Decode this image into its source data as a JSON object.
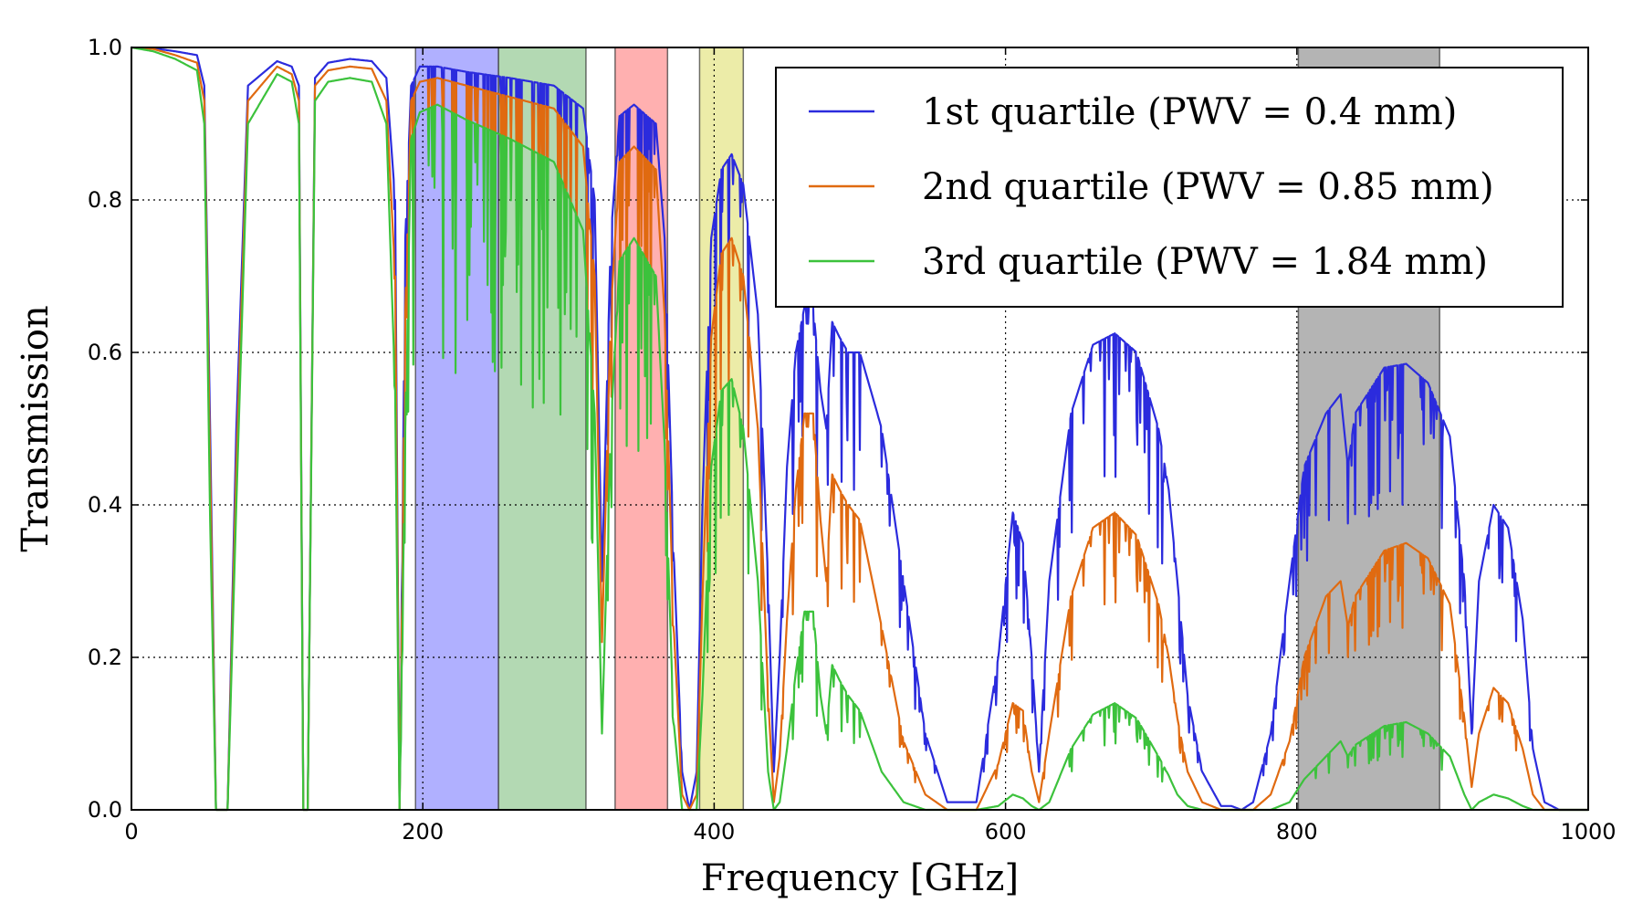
{
  "chart_data": {
    "type": "line",
    "title": "",
    "xlabel": "Frequency [GHz]",
    "ylabel": "Transmission",
    "xlim": [
      0,
      1000
    ],
    "ylim": [
      0,
      1.0
    ],
    "xticks": [
      "0",
      "200",
      "400",
      "600",
      "800",
      "1000"
    ],
    "yticks": [
      "0.0",
      "0.2",
      "0.4",
      "0.6",
      "0.8",
      "1.0"
    ],
    "grid": true,
    "legend_position": "top-right",
    "bands": [
      {
        "x0": 195,
        "x1": 252,
        "color": "#b0b0ff"
      },
      {
        "x0": 252,
        "x1": 312,
        "color": "#b3d9b3"
      },
      {
        "x0": 332,
        "x1": 368,
        "color": "#ffb0b0"
      },
      {
        "x0": 390,
        "x1": 420,
        "color": "#ececa8"
      },
      {
        "x0": 801,
        "x1": 898,
        "color": "#b4b4b4"
      }
    ],
    "absorption_lines_ghz": [
      22.2,
      56,
      62,
      119,
      183.3,
      321,
      325,
      380,
      390,
      439,
      448,
      475,
      487,
      557,
      621,
      752,
      771,
      835,
      916,
      970
    ],
    "series": [
      {
        "name": "1st quartile (PWV = 0.4 mm)",
        "color": "#2b2bdd",
        "x": [
          0,
          15,
          30,
          45,
          50,
          54,
          58,
          66,
          72,
          80,
          100,
          110,
          115,
          118,
          121,
          126,
          135,
          150,
          165,
          175,
          181,
          184,
          188,
          192,
          198,
          210,
          230,
          260,
          290,
          310,
          318,
          323,
          329,
          335,
          345,
          360,
          366,
          372,
          378,
          383,
          388,
          392,
          398,
          405,
          412,
          420,
          430,
          437,
          441,
          445,
          450,
          456,
          462,
          468,
          473,
          477,
          481,
          486,
          492,
          500,
          515,
          530,
          545,
          560,
          580,
          595,
          605,
          612,
          618,
          623,
          630,
          645,
          660,
          675,
          690,
          705,
          712,
          718,
          725,
          735,
          748,
          755,
          762,
          770,
          782,
          795,
          805,
          820,
          830,
          835,
          840,
          860,
          875,
          890,
          905,
          915,
          920,
          925,
          935,
          945,
          955,
          962,
          970,
          980,
          1000
        ],
        "values": [
          1.0,
          0.999,
          0.995,
          0.99,
          0.95,
          0.5,
          0.0,
          0.0,
          0.5,
          0.95,
          0.982,
          0.975,
          0.95,
          0.0,
          0.0,
          0.96,
          0.98,
          0.985,
          0.982,
          0.96,
          0.8,
          0.0,
          0.75,
          0.95,
          0.975,
          0.975,
          0.968,
          0.96,
          0.95,
          0.92,
          0.8,
          0.3,
          0.75,
          0.91,
          0.925,
          0.9,
          0.75,
          0.35,
          0.05,
          0.0,
          0.05,
          0.4,
          0.75,
          0.84,
          0.86,
          0.82,
          0.65,
          0.3,
          0.05,
          0.2,
          0.45,
          0.6,
          0.66,
          0.66,
          0.55,
          0.5,
          0.64,
          0.62,
          0.6,
          0.6,
          0.5,
          0.3,
          0.1,
          0.01,
          0.01,
          0.2,
          0.39,
          0.35,
          0.2,
          0.05,
          0.3,
          0.52,
          0.61,
          0.625,
          0.6,
          0.5,
          0.42,
          0.3,
          0.15,
          0.05,
          0.005,
          0.005,
          0.0,
          0.01,
          0.1,
          0.3,
          0.45,
          0.52,
          0.545,
          0.45,
          0.52,
          0.58,
          0.585,
          0.56,
          0.49,
          0.3,
          0.1,
          0.3,
          0.4,
          0.37,
          0.25,
          0.08,
          0.01,
          0.0,
          0.0
        ]
      },
      {
        "name": "2nd quartile (PWV = 0.85 mm)",
        "color": "#e06a10",
        "x": [
          0,
          15,
          30,
          45,
          50,
          54,
          58,
          66,
          72,
          80,
          100,
          110,
          115,
          118,
          121,
          126,
          135,
          150,
          165,
          175,
          181,
          184,
          188,
          192,
          198,
          210,
          230,
          260,
          290,
          310,
          318,
          323,
          329,
          335,
          345,
          360,
          366,
          372,
          378,
          383,
          388,
          392,
          398,
          405,
          412,
          420,
          430,
          437,
          441,
          445,
          450,
          456,
          462,
          468,
          473,
          477,
          481,
          486,
          492,
          500,
          515,
          530,
          545,
          560,
          580,
          595,
          605,
          612,
          618,
          623,
          630,
          645,
          660,
          675,
          690,
          705,
          712,
          718,
          725,
          735,
          748,
          755,
          762,
          770,
          782,
          795,
          805,
          820,
          830,
          835,
          840,
          860,
          875,
          890,
          905,
          915,
          920,
          925,
          935,
          945,
          955,
          962,
          970,
          980,
          1000
        ],
        "values": [
          1.0,
          0.998,
          0.99,
          0.98,
          0.93,
          0.45,
          0.0,
          0.0,
          0.45,
          0.93,
          0.975,
          0.965,
          0.93,
          0.0,
          0.0,
          0.95,
          0.97,
          0.975,
          0.972,
          0.93,
          0.7,
          0.0,
          0.65,
          0.93,
          0.955,
          0.96,
          0.95,
          0.935,
          0.92,
          0.87,
          0.7,
          0.22,
          0.65,
          0.85,
          0.87,
          0.84,
          0.65,
          0.25,
          0.02,
          0.0,
          0.02,
          0.28,
          0.62,
          0.73,
          0.75,
          0.7,
          0.5,
          0.15,
          0.01,
          0.07,
          0.25,
          0.42,
          0.52,
          0.52,
          0.38,
          0.3,
          0.44,
          0.42,
          0.4,
          0.38,
          0.24,
          0.09,
          0.02,
          0.0,
          0.0,
          0.06,
          0.14,
          0.13,
          0.05,
          0.01,
          0.1,
          0.28,
          0.37,
          0.39,
          0.36,
          0.27,
          0.2,
          0.12,
          0.05,
          0.01,
          0.0,
          0.0,
          0.0,
          0.0,
          0.02,
          0.09,
          0.2,
          0.28,
          0.3,
          0.24,
          0.28,
          0.34,
          0.35,
          0.33,
          0.27,
          0.12,
          0.03,
          0.1,
          0.16,
          0.14,
          0.08,
          0.02,
          0.0,
          0.0,
          0.0
        ]
      },
      {
        "name": "3rd quartile (PWV = 1.84 mm)",
        "color": "#3cc23c",
        "x": [
          0,
          15,
          30,
          45,
          50,
          54,
          58,
          66,
          72,
          80,
          100,
          110,
          115,
          118,
          121,
          126,
          135,
          150,
          165,
          175,
          181,
          184,
          188,
          192,
          198,
          210,
          230,
          260,
          290,
          310,
          318,
          323,
          329,
          335,
          345,
          360,
          366,
          372,
          378,
          383,
          388,
          392,
          398,
          405,
          412,
          420,
          430,
          437,
          441,
          445,
          450,
          456,
          462,
          468,
          473,
          477,
          481,
          486,
          492,
          500,
          515,
          530,
          545,
          560,
          580,
          595,
          605,
          612,
          618,
          623,
          630,
          645,
          660,
          675,
          690,
          705,
          712,
          718,
          725,
          735,
          748,
          755,
          762,
          770,
          782,
          795,
          805,
          820,
          830,
          835,
          840,
          860,
          875,
          890,
          905,
          915,
          920,
          925,
          935,
          945,
          955,
          962,
          970,
          980,
          1000
        ],
        "values": [
          1.0,
          0.995,
          0.985,
          0.97,
          0.9,
          0.38,
          0.0,
          0.0,
          0.4,
          0.9,
          0.965,
          0.955,
          0.9,
          0.0,
          0.0,
          0.93,
          0.955,
          0.96,
          0.955,
          0.9,
          0.55,
          0.0,
          0.5,
          0.88,
          0.915,
          0.925,
          0.905,
          0.88,
          0.85,
          0.76,
          0.52,
          0.1,
          0.5,
          0.72,
          0.75,
          0.7,
          0.48,
          0.12,
          0.0,
          0.0,
          0.0,
          0.15,
          0.45,
          0.55,
          0.565,
          0.5,
          0.3,
          0.05,
          0.0,
          0.01,
          0.08,
          0.18,
          0.26,
          0.26,
          0.15,
          0.1,
          0.19,
          0.17,
          0.15,
          0.13,
          0.05,
          0.01,
          0.0,
          0.0,
          0.0,
          0.005,
          0.02,
          0.015,
          0.005,
          0.0,
          0.01,
          0.08,
          0.125,
          0.14,
          0.12,
          0.07,
          0.045,
          0.02,
          0.005,
          0.0,
          0.0,
          0.0,
          0.0,
          0.0,
          0.0,
          0.01,
          0.04,
          0.07,
          0.09,
          0.07,
          0.085,
          0.11,
          0.115,
          0.1,
          0.07,
          0.02,
          0.0,
          0.01,
          0.02,
          0.015,
          0.005,
          0.0,
          0.0,
          0.0,
          0.0
        ]
      }
    ],
    "legend_entries": [
      "1st quartile (PWV = 0.4 mm)",
      "2nd quartile (PWV = 0.85 mm)",
      "3rd quartile (PWV = 1.84 mm)"
    ]
  }
}
